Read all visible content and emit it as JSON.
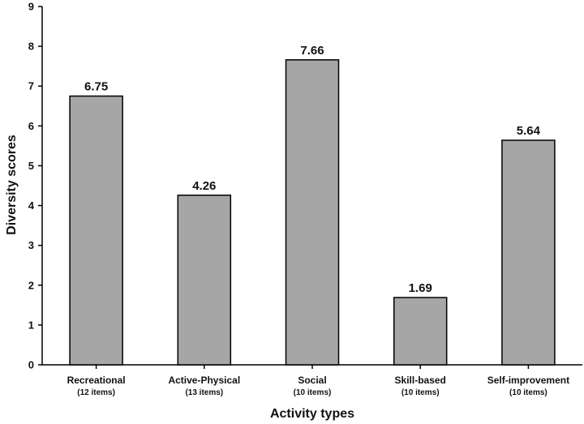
{
  "chart_data": {
    "type": "bar",
    "title": "",
    "xlabel": "Activity types",
    "ylabel": "Diversity scores",
    "ylim": [
      0,
      9
    ],
    "yticks": [
      "0",
      "1",
      "2",
      "3",
      "4",
      "5",
      "6",
      "7",
      "8",
      "9"
    ],
    "categories": [
      {
        "name": "Recreational",
        "sub": "(12 items)"
      },
      {
        "name": "Active-Physical",
        "sub": "(13 items)"
      },
      {
        "name": "Social",
        "sub": "(10 items)"
      },
      {
        "name": "Skill-based",
        "sub": "(10 items)"
      },
      {
        "name": "Self-improvement",
        "sub": "(10 items)"
      }
    ],
    "values": [
      6.75,
      4.26,
      7.66,
      1.69,
      5.64
    ],
    "value_labels": [
      "6.75",
      "4.26",
      "7.66",
      "1.69",
      "5.64"
    ],
    "bar_color": "#a6a6a6",
    "grid": false,
    "legend": "none"
  }
}
